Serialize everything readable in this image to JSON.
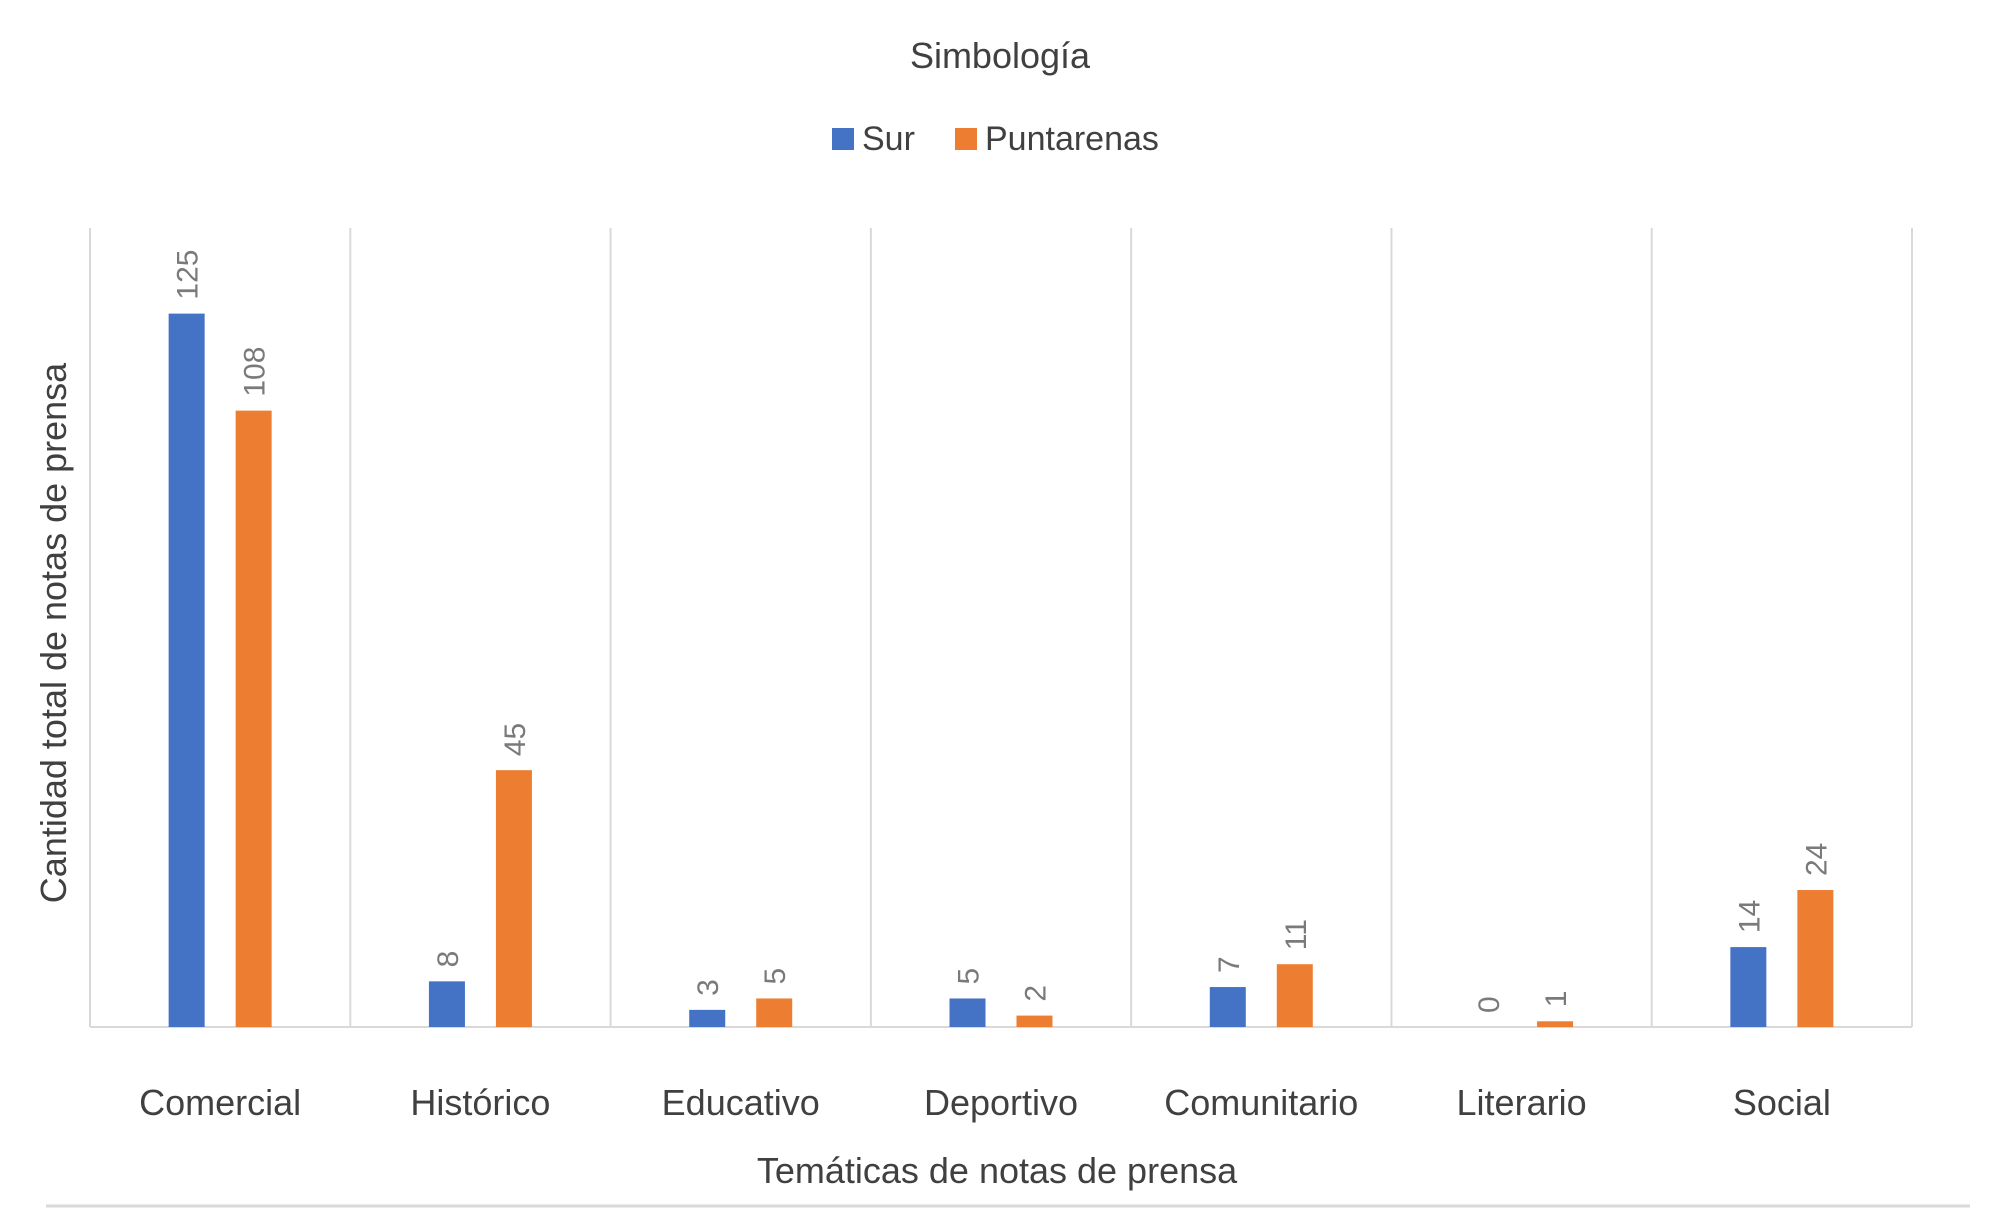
{
  "chart_data": {
    "type": "bar",
    "legend_title": "Simbología",
    "legend_position": "top",
    "categories": [
      "Comercial",
      "Histórico",
      "Educativo",
      "Deportivo",
      "Comunitario",
      "Literario",
      "Social"
    ],
    "series": [
      {
        "name": "Sur",
        "color": "#4472C4",
        "values": [
          125,
          8,
          3,
          5,
          7,
          0,
          14
        ]
      },
      {
        "name": "Puntarenas",
        "color": "#ED7D31",
        "values": [
          108,
          45,
          5,
          2,
          11,
          1,
          24
        ]
      }
    ],
    "xlabel": "Temáticas de notas de prensa",
    "ylabel": "Cantidad total de notas de prensa",
    "ylim": [
      0,
      140
    ],
    "grid": "vertical category separators",
    "data_labels": true
  }
}
